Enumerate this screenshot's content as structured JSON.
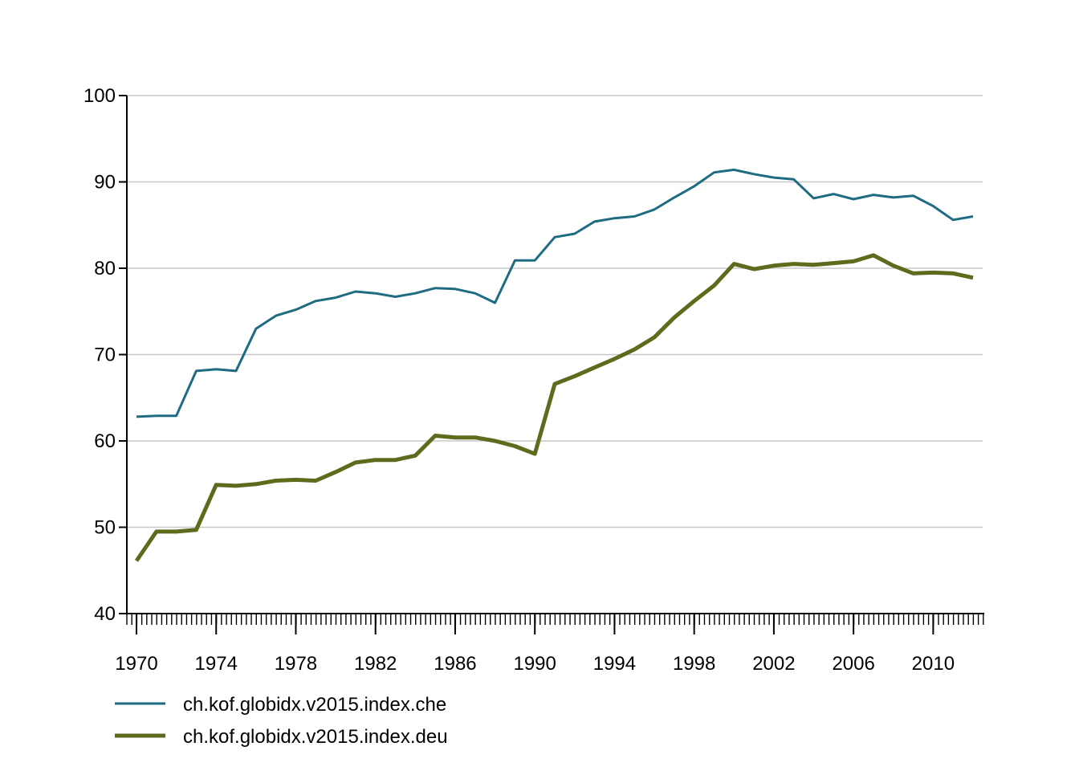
{
  "chart_data": {
    "type": "line",
    "title": "",
    "xlabel": "",
    "ylabel": "",
    "xlim": [
      1970,
      2012
    ],
    "ylim": [
      40,
      100
    ],
    "x_ticks": [
      "1970",
      "1974",
      "1978",
      "1982",
      "1986",
      "1990",
      "1994",
      "1998",
      "2002",
      "2006",
      "2010"
    ],
    "y_ticks": [
      "40",
      "50",
      "60",
      "70",
      "80",
      "90",
      "100"
    ],
    "grid": "horizontal",
    "legend_position": "bottom-left",
    "x": [
      1970,
      1971,
      1972,
      1973,
      1974,
      1975,
      1976,
      1977,
      1978,
      1979,
      1980,
      1981,
      1982,
      1983,
      1984,
      1985,
      1986,
      1987,
      1988,
      1989,
      1990,
      1991,
      1992,
      1993,
      1994,
      1995,
      1996,
      1997,
      1998,
      1999,
      2000,
      2001,
      2002,
      2003,
      2004,
      2005,
      2006,
      2007,
      2008,
      2009,
      2010,
      2011,
      2012
    ],
    "series": [
      {
        "name": "ch.kof.globidx.v2015.index.che",
        "color": "#1f6b82",
        "values": [
          62.8,
          62.9,
          62.9,
          68.1,
          68.3,
          68.1,
          73.0,
          74.5,
          75.2,
          76.2,
          76.6,
          77.3,
          77.1,
          76.7,
          77.1,
          77.7,
          77.6,
          77.1,
          76.0,
          80.9,
          80.9,
          83.6,
          84.0,
          85.4,
          85.8,
          86.0,
          86.8,
          88.2,
          89.5,
          91.1,
          91.4,
          90.9,
          90.5,
          90.3,
          88.1,
          88.6,
          88.0,
          88.5,
          88.2,
          88.4,
          87.2,
          85.6,
          86.0
        ]
      },
      {
        "name": "ch.kof.globidx.v2015.index.deu",
        "color": "#5c6b1c",
        "values": [
          46.1,
          49.5,
          49.5,
          49.7,
          54.9,
          54.8,
          55.0,
          55.4,
          55.5,
          55.4,
          56.4,
          57.5,
          57.8,
          57.8,
          58.3,
          60.6,
          60.4,
          60.4,
          60.0,
          59.4,
          58.5,
          66.6,
          67.5,
          68.5,
          69.5,
          70.6,
          72.0,
          74.3,
          76.2,
          78.0,
          80.5,
          79.9,
          80.3,
          80.5,
          80.4,
          80.6,
          80.8,
          81.5,
          80.3,
          79.4,
          79.5,
          79.4,
          78.9
        ]
      }
    ]
  }
}
